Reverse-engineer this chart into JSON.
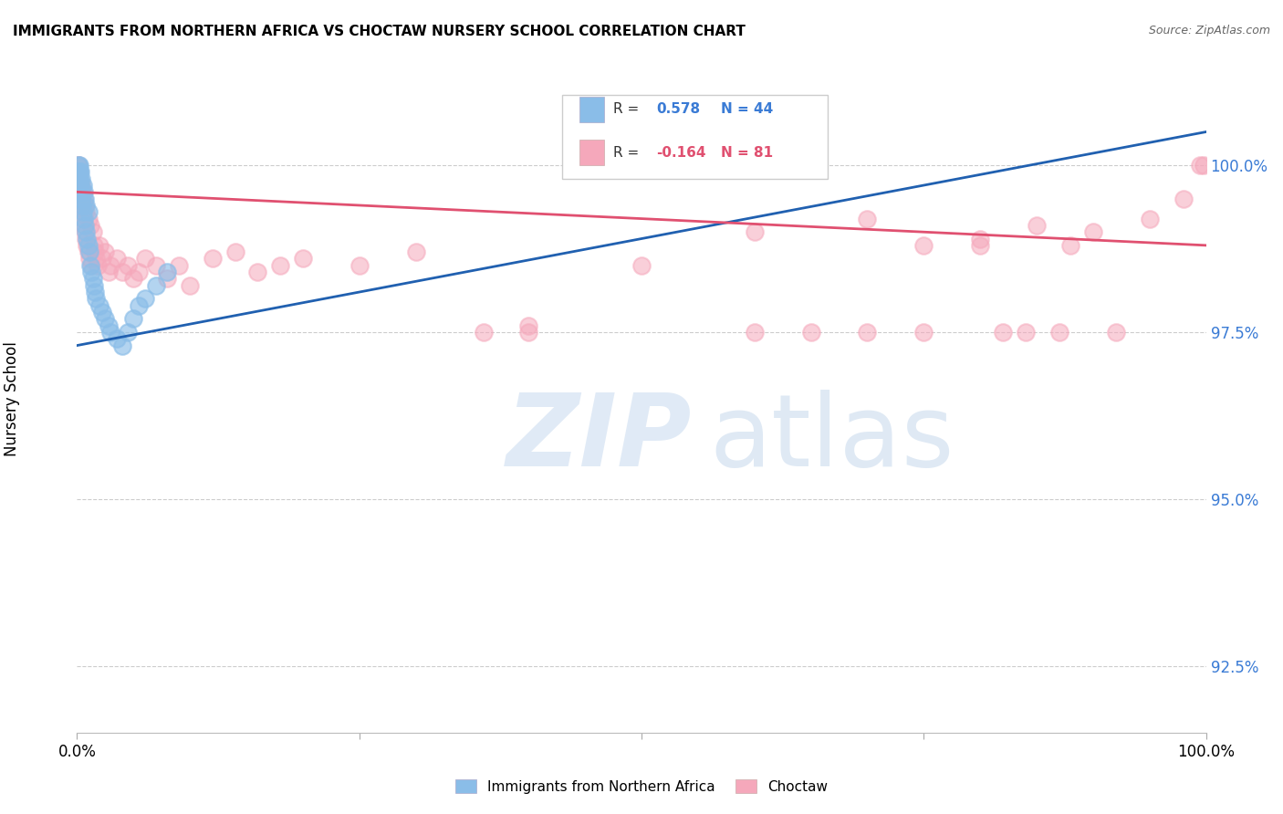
{
  "title": "IMMIGRANTS FROM NORTHERN AFRICA VS CHOCTAW NURSERY SCHOOL CORRELATION CHART",
  "source": "Source: ZipAtlas.com",
  "ylabel": "Nursery School",
  "ytick_labels": [
    "92.5%",
    "95.0%",
    "97.5%",
    "100.0%"
  ],
  "ytick_values": [
    92.5,
    95.0,
    97.5,
    100.0
  ],
  "xlim": [
    0,
    100
  ],
  "ylim": [
    91.5,
    101.5
  ],
  "blue_R": 0.578,
  "blue_N": 44,
  "pink_R": -0.164,
  "pink_N": 81,
  "blue_color": "#8abde8",
  "pink_color": "#f5a8bb",
  "blue_line_color": "#2060b0",
  "pink_line_color": "#e05070",
  "legend_blue_label": "Immigrants from Northern Africa",
  "legend_pink_label": "Choctaw",
  "blue_line_x0": 0,
  "blue_line_y0": 97.3,
  "blue_line_x1": 100,
  "blue_line_y1": 100.5,
  "pink_line_x0": 0,
  "pink_line_y0": 99.6,
  "pink_line_x1": 100,
  "pink_line_y1": 98.8,
  "blue_x": [
    0.1,
    0.15,
    0.15,
    0.2,
    0.2,
    0.2,
    0.25,
    0.3,
    0.3,
    0.35,
    0.4,
    0.4,
    0.45,
    0.5,
    0.5,
    0.6,
    0.6,
    0.7,
    0.7,
    0.8,
    0.8,
    0.9,
    1.0,
    1.0,
    1.1,
    1.2,
    1.3,
    1.4,
    1.5,
    1.6,
    1.7,
    2.0,
    2.2,
    2.5,
    2.8,
    3.0,
    3.5,
    4.0,
    4.5,
    5.0,
    5.5,
    6.0,
    7.0,
    8.0
  ],
  "blue_y": [
    99.9,
    100.0,
    99.8,
    100.0,
    99.9,
    99.8,
    99.7,
    99.9,
    99.7,
    99.6,
    99.8,
    99.5,
    99.4,
    99.7,
    99.3,
    99.6,
    99.2,
    99.5,
    99.1,
    99.4,
    99.0,
    98.9,
    99.3,
    98.8,
    98.7,
    98.5,
    98.4,
    98.3,
    98.2,
    98.1,
    98.0,
    97.9,
    97.8,
    97.7,
    97.6,
    97.5,
    97.4,
    97.3,
    97.5,
    97.7,
    97.9,
    98.0,
    98.2,
    98.4
  ],
  "pink_x": [
    0.05,
    0.1,
    0.1,
    0.15,
    0.15,
    0.2,
    0.2,
    0.2,
    0.25,
    0.25,
    0.3,
    0.3,
    0.35,
    0.4,
    0.4,
    0.45,
    0.5,
    0.5,
    0.6,
    0.6,
    0.7,
    0.7,
    0.8,
    0.8,
    0.9,
    1.0,
    1.0,
    1.1,
    1.2,
    1.3,
    1.4,
    1.5,
    1.6,
    1.7,
    1.8,
    2.0,
    2.2,
    2.5,
    2.8,
    3.0,
    3.5,
    4.0,
    4.5,
    5.0,
    5.5,
    6.0,
    7.0,
    8.0,
    9.0,
    10.0,
    12.0,
    14.0,
    16.0,
    18.0,
    20.0,
    25.0,
    30.0,
    36.0,
    40.0,
    50.0,
    60.0,
    70.0,
    75.0,
    80.0,
    85.0,
    88.0,
    90.0,
    95.0,
    98.0,
    99.5,
    40.0,
    60.0,
    65.0,
    70.0,
    75.0,
    80.0,
    82.0,
    84.0,
    87.0,
    92.0,
    99.8
  ],
  "pink_y": [
    100.0,
    99.9,
    99.8,
    100.0,
    99.7,
    99.9,
    99.8,
    99.6,
    99.7,
    99.5,
    99.6,
    99.4,
    99.5,
    99.7,
    99.3,
    99.4,
    99.6,
    99.2,
    99.5,
    99.1,
    99.4,
    99.0,
    99.3,
    98.9,
    98.8,
    99.2,
    98.7,
    98.6,
    99.1,
    98.5,
    99.0,
    98.8,
    98.7,
    98.6,
    98.5,
    98.8,
    98.6,
    98.7,
    98.4,
    98.5,
    98.6,
    98.4,
    98.5,
    98.3,
    98.4,
    98.6,
    98.5,
    98.3,
    98.5,
    98.2,
    98.6,
    98.7,
    98.4,
    98.5,
    98.6,
    98.5,
    98.7,
    97.5,
    97.6,
    98.5,
    99.0,
    99.2,
    98.8,
    98.9,
    99.1,
    98.8,
    99.0,
    99.2,
    99.5,
    100.0,
    97.5,
    97.5,
    97.5,
    97.5,
    97.5,
    98.8,
    97.5,
    97.5,
    97.5,
    97.5,
    100.0
  ]
}
